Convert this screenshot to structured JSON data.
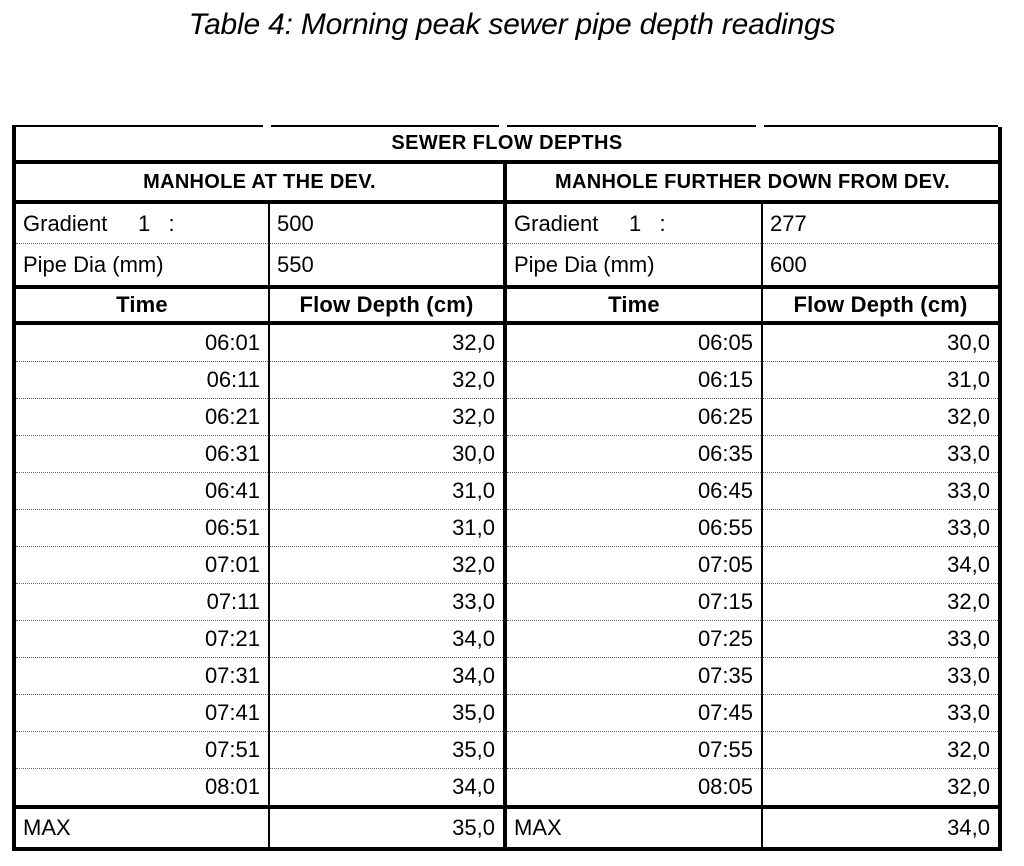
{
  "title": "Table 4: Morning peak sewer pipe depth readings",
  "colors": {
    "text": "#000000",
    "background": "#ffffff",
    "rule": "#000000",
    "dotted_separator": "#666666"
  },
  "table": {
    "header": "SEWER FLOW DEPTHS",
    "left_section_header": "MANHOLE AT THE DEV.",
    "right_section_header": "MANHOLE FURTHER DOWN FROM DEV.",
    "left": {
      "gradient_label": "Gradient     1   :",
      "gradient_value": "500",
      "pipe_label": "Pipe Dia (mm)",
      "pipe_value": "550",
      "time_header": "Time",
      "depth_header": "Flow Depth (cm)",
      "max_label": "MAX",
      "max_value": "35,0"
    },
    "right": {
      "gradient_label": "Gradient     1   :",
      "gradient_value": "277",
      "pipe_label": "Pipe Dia (mm)",
      "pipe_value": "600",
      "time_header": "Time",
      "depth_header": "Flow Depth (cm)",
      "max_label": "MAX",
      "max_value": "34,0"
    },
    "rows": [
      [
        "06:01",
        "32,0",
        "06:05",
        "30,0"
      ],
      [
        "06:11",
        "32,0",
        "06:15",
        "31,0"
      ],
      [
        "06:21",
        "32,0",
        "06:25",
        "32,0"
      ],
      [
        "06:31",
        "30,0",
        "06:35",
        "33,0"
      ],
      [
        "06:41",
        "31,0",
        "06:45",
        "33,0"
      ],
      [
        "06:51",
        "31,0",
        "06:55",
        "33,0"
      ],
      [
        "07:01",
        "32,0",
        "07:05",
        "34,0"
      ],
      [
        "07:11",
        "33,0",
        "07:15",
        "32,0"
      ],
      [
        "07:21",
        "34,0",
        "07:25",
        "33,0"
      ],
      [
        "07:31",
        "34,0",
        "07:35",
        "33,0"
      ],
      [
        "07:41",
        "35,0",
        "07:45",
        "33,0"
      ],
      [
        "07:51",
        "35,0",
        "07:55",
        "32,0"
      ],
      [
        "08:01",
        "34,0",
        "08:05",
        "32,0"
      ]
    ]
  }
}
